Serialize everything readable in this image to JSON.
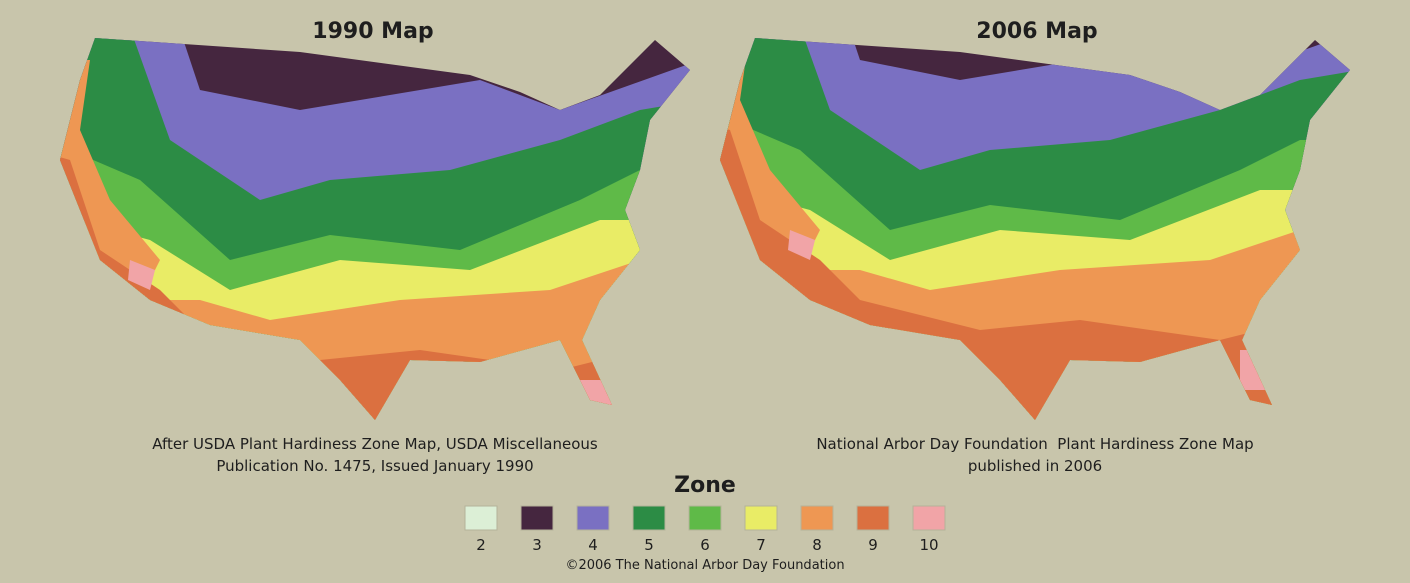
{
  "maps": [
    {
      "title": "1990 Map",
      "caption": [
        "After USDA Plant Hardiness Zone Map, USDA Miscellaneous",
        "Publication No. 1475, Issued January 1990"
      ]
    },
    {
      "title": "2006 Map",
      "caption": [
        "National Arbor Day Foundation  Plant Hardiness Zone Map",
        "published in 2006"
      ]
    }
  ],
  "legend": {
    "title": "Zone",
    "items": [
      {
        "label": "2",
        "color": "#dcefd6"
      },
      {
        "label": "3",
        "color": "#45263f"
      },
      {
        "label": "4",
        "color": "#7a70c2"
      },
      {
        "label": "5",
        "color": "#2c8c45"
      },
      {
        "label": "6",
        "color": "#5fba48"
      },
      {
        "label": "7",
        "color": "#e9ec66"
      },
      {
        "label": "8",
        "color": "#ee9753"
      },
      {
        "label": "9",
        "color": "#db7040"
      },
      {
        "label": "10",
        "color": "#f1a4a7"
      }
    ]
  },
  "footer": "©2006 The National Arbor Day Foundation"
}
